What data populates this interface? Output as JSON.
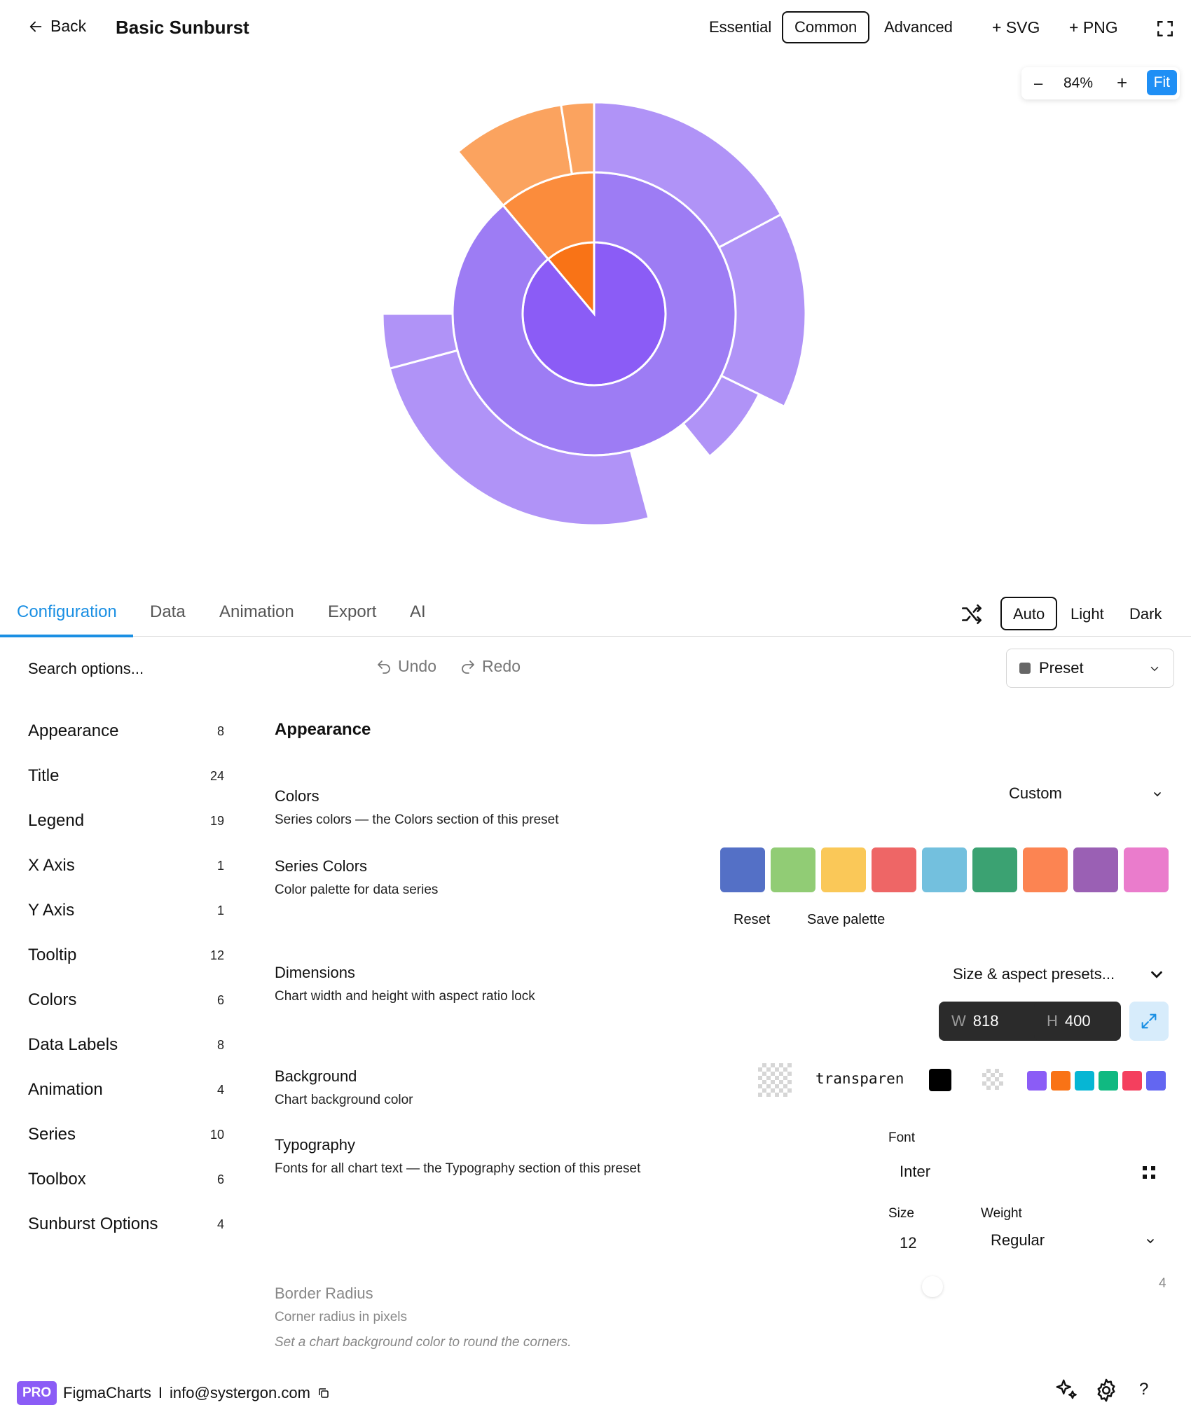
{
  "header": {
    "back_label": "Back",
    "title": "Basic Sunburst",
    "modes": [
      "Essential",
      "Common",
      "Advanced"
    ],
    "active_mode": "Common",
    "export_svg": "+ SVG",
    "export_png": "+ PNG"
  },
  "zoom": {
    "minus": "–",
    "value": "84%",
    "plus": "+",
    "fit": "Fit"
  },
  "tabs": [
    "Configuration",
    "Data",
    "Animation",
    "Export",
    "AI"
  ],
  "active_tab": "Configuration",
  "theme": {
    "options": [
      "Auto",
      "Light",
      "Dark"
    ],
    "active": "Auto"
  },
  "toolbar": {
    "search_placeholder": "Search options...",
    "undo": "Undo",
    "redo": "Redo",
    "preset": "Preset"
  },
  "sidebar": {
    "items": [
      {
        "label": "Appearance",
        "count": "8"
      },
      {
        "label": "Title",
        "count": "24"
      },
      {
        "label": "Legend",
        "count": "19"
      },
      {
        "label": "X Axis",
        "count": "1"
      },
      {
        "label": "Y Axis",
        "count": "1"
      },
      {
        "label": "Tooltip",
        "count": "12"
      },
      {
        "label": "Colors",
        "count": "6"
      },
      {
        "label": "Data Labels",
        "count": "8"
      },
      {
        "label": "Animation",
        "count": "4"
      },
      {
        "label": "Series",
        "count": "10"
      },
      {
        "label": "Toolbox",
        "count": "6"
      },
      {
        "label": "Sunburst Options",
        "count": "4"
      }
    ]
  },
  "content": {
    "heading": "Appearance",
    "colors": {
      "title": "Colors",
      "desc": "Series colors — the Colors section of this preset",
      "value": "Custom"
    },
    "series_colors": {
      "title": "Series Colors",
      "desc": "Color palette for data series",
      "palette": [
        "#5470c6",
        "#91cc75",
        "#fac858",
        "#ee6666",
        "#73c0de",
        "#3ba272",
        "#fc8452",
        "#9a60b4",
        "#ea7ccc"
      ],
      "reset": "Reset",
      "save": "Save palette"
    },
    "dimensions": {
      "title": "Dimensions",
      "desc": "Chart width and height with aspect ratio lock",
      "presets": "Size & aspect presets...",
      "w_label": "W",
      "w_value": "818",
      "h_label": "H",
      "h_value": "400"
    },
    "background": {
      "title": "Background",
      "desc": "Chart background color",
      "value": "transparent",
      "quick_colors": [
        "#8b5cf6",
        "#f97316",
        "#06b6d4",
        "#10b981",
        "#f43f5e",
        "#6366f1"
      ]
    },
    "typography": {
      "title": "Typography",
      "desc": "Fonts for all chart text — the Typography section of this preset",
      "font_label": "Font",
      "font_value": "Inter",
      "size_label": "Size",
      "size_value": "12",
      "weight_label": "Weight",
      "weight_value": "Regular"
    },
    "border_radius": {
      "title": "Border Radius",
      "desc": "Corner radius in pixels",
      "note": "Set a chart background color to round the corners.",
      "value": "4"
    }
  },
  "footer": {
    "badge": "PRO",
    "brand": "FigmaCharts",
    "separator": "I",
    "email": "info@systergon.com"
  },
  "chart_data": {
    "type": "sunburst",
    "levels": [
      {
        "ring": 1,
        "segments": [
          {
            "value": 100,
            "color": "#8b5cf6"
          }
        ]
      },
      {
        "ring": 2,
        "segments": [
          {
            "value": 86,
            "color": "#9d7cf4"
          },
          {
            "value": 14,
            "color": "#f97316"
          }
        ]
      }
    ]
  }
}
